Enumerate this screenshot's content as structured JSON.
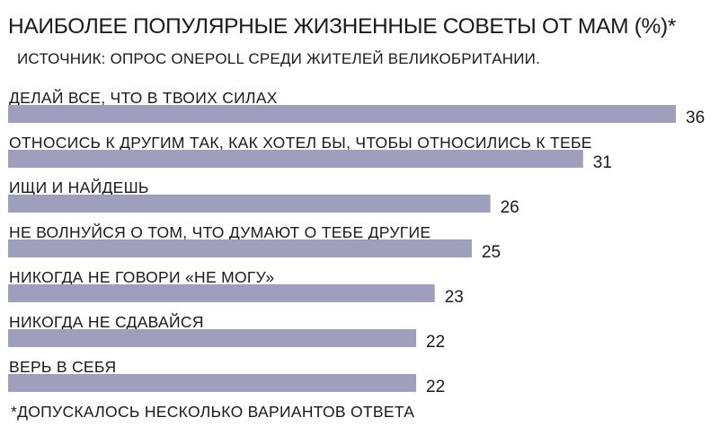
{
  "chart_data": {
    "type": "bar",
    "orientation": "horizontal",
    "title": "НАИБОЛЕЕ ПОПУЛЯРНЫЕ ЖИЗНЕННЫЕ СОВЕТЫ ОТ МАМ (%)*",
    "subtitle": "ИСТОЧНИК: ОПРОС ONEPOLL СРЕДИ ЖИТЕЛЕЙ ВЕЛИКОБРИТАНИИ.",
    "categories": [
      "ДЕЛАЙ ВСЕ, ЧТО В ТВОИХ СИЛАХ",
      "ОТНОСИСЬ К ДРУГИМ ТАК, КАК ХОТЕЛ БЫ, ЧТОБЫ ОТНОСИЛИСЬ К ТЕБЕ",
      "ИЩИ И НАЙДЕШЬ",
      "НЕ ВОЛНУЙСЯ О ТОМ, ЧТО ДУМАЮТ О ТЕБЕ ДРУГИЕ",
      "НИКОГДА НЕ ГОВОРИ «НЕ МОГУ»",
      "НИКОГДА НЕ СДАВАЙСЯ",
      "ВЕРЬ В СЕБЯ"
    ],
    "values": [
      36,
      31,
      26,
      25,
      23,
      22,
      22
    ],
    "xlim": [
      0,
      36
    ],
    "bar_color": "#9f9fbd",
    "grid": false,
    "footnote": "*ДОПУСКАЛОСЬ НЕСКОЛЬКО ВАРИАНТОВ ОТВЕТА"
  }
}
